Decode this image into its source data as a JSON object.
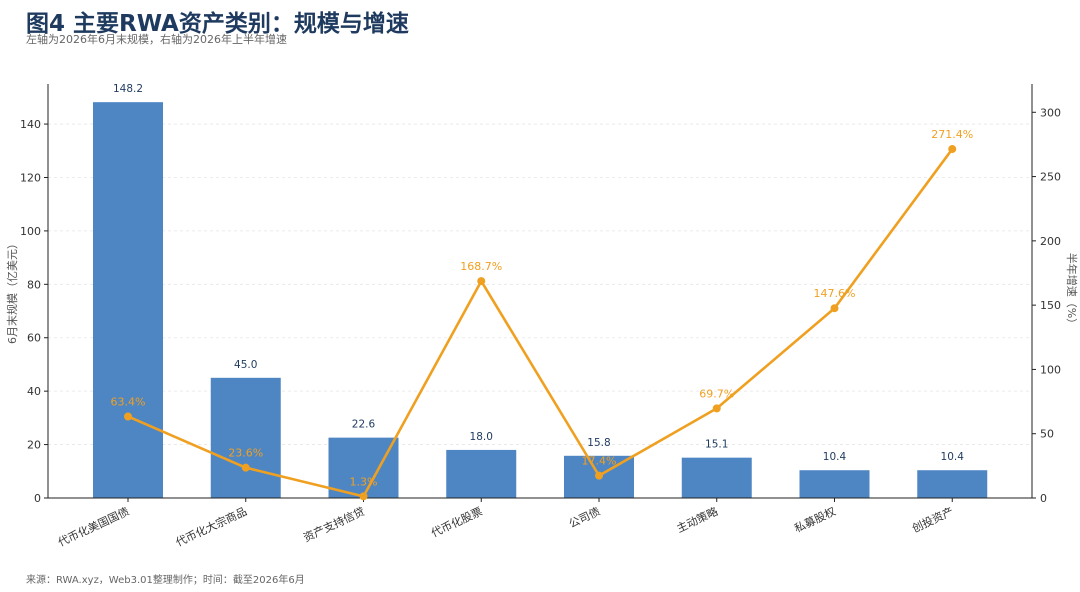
{
  "header": {
    "title": "图4 主要RWA资产类别：规模与增速",
    "subtitle": "左轴为2026年6月末规模，右轴为2026年上半年增速"
  },
  "footer": {
    "source": "来源：RWA.xyz，Web3.01整理制作；时间：截至2026年6月"
  },
  "chart_data": {
    "type": "bar",
    "categories": [
      "代币化美国国债",
      "代币化大宗商品",
      "资产支持信贷",
      "代币化股票",
      "公司债",
      "主动策略",
      "私募股权",
      "创投资产"
    ],
    "series": [
      {
        "type": "bar",
        "axis": "left",
        "values": [
          148.2,
          45.0,
          22.6,
          18.0,
          15.8,
          15.1,
          10.4,
          10.4
        ],
        "labels": [
          "148.2",
          "45.0",
          "22.6",
          "18.0",
          "15.8",
          "15.1",
          "10.4",
          "10.4"
        ],
        "color": "#4e86c4"
      },
      {
        "type": "line",
        "axis": "right",
        "values": [
          63.4,
          23.6,
          1.3,
          168.7,
          17.4,
          69.7,
          147.6,
          271.4
        ],
        "labels": [
          "63.4%",
          "23.6%",
          "1.3%",
          "168.7%",
          "17.4%",
          "69.7%",
          "147.6%",
          "271.4%"
        ],
        "color": "#f0a020"
      }
    ],
    "ylabel_left": "6月末规模（亿美元）",
    "ylabel_right": "半年增速（%）",
    "ylim_left": [
      0,
      155
    ],
    "ylim_right": [
      0,
      322
    ],
    "yticks_left": [
      "0",
      "20",
      "40",
      "60",
      "80",
      "100",
      "120",
      "140"
    ],
    "yticks_right": [
      "0",
      "50",
      "100",
      "150",
      "200",
      "250",
      "300"
    ],
    "grid": true,
    "legend": "none"
  }
}
